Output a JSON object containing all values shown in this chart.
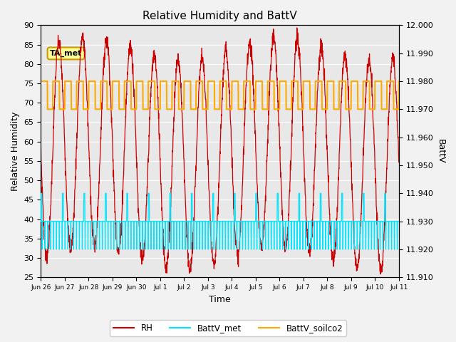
{
  "title": "Relative Humidity and BattV",
  "xlabel": "Time",
  "ylabel_left": "Relative Humidity",
  "ylabel_right": "BattV",
  "ylim_left": [
    25,
    90
  ],
  "ylim_right": [
    11.91,
    12.0
  ],
  "yticks_left": [
    25,
    30,
    35,
    40,
    45,
    50,
    55,
    60,
    65,
    70,
    75,
    80,
    85,
    90
  ],
  "yticks_right": [
    11.91,
    11.92,
    11.93,
    11.94,
    11.95,
    11.96,
    11.97,
    11.98,
    11.99,
    12.0
  ],
  "xtick_labels": [
    "Jun 26",
    "Jun 27",
    "Jun 28",
    "Jun 29",
    "Jun 30",
    "Jul 1",
    "Jul 2",
    "Jul 3",
    "Jul 4",
    "Jul 5",
    "Jul 6",
    "Jul 7",
    "Jul 8",
    "Jul 9",
    "Jul 10",
    "Jul 11"
  ],
  "annotation_text": "TA_met",
  "colors": {
    "RH": "#cc0000",
    "BattV_met": "#00e5ff",
    "BattV_soilco2": "#ffaa00",
    "fig_bg": "#f2f2f2",
    "plot_bg": "#e8e8e8",
    "grid": "#ffffff"
  },
  "legend_labels": [
    "RH",
    "BattV_met",
    "BattV_soilco2"
  ]
}
